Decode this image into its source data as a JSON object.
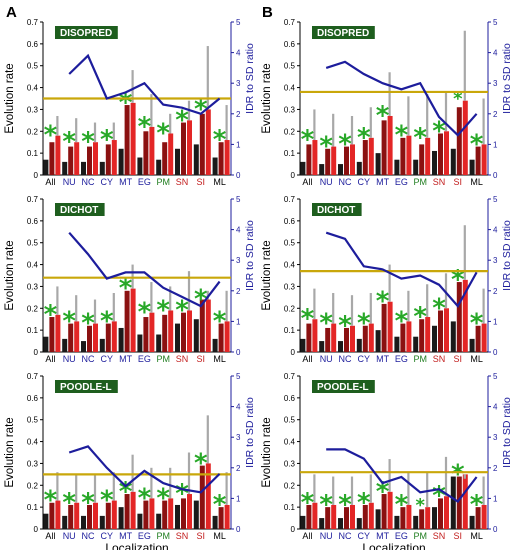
{
  "colors": {
    "bar_dark": "#1a1a1a",
    "bar_darkred": "#8b1111",
    "bar_red": "#e32626",
    "error": "#a8a8a8",
    "line": "#1d1d9c",
    "threshold": "#c9a70a",
    "star": "#28a828",
    "title_bg": "#1e5e1e",
    "cat_blue": "#1d1d9c",
    "cat_green": "#1f7d1f",
    "cat_red": "#c21d1d",
    "cat_black": "#000000"
  },
  "columns": [
    {
      "label": "A"
    },
    {
      "label": "B"
    }
  ],
  "chart_data": [
    {
      "type": "bar",
      "panel": "A",
      "title": "DISOPRED",
      "categories": [
        "All",
        "NU",
        "NC",
        "CY",
        "MT",
        "EG",
        "PM",
        "SN",
        "SI",
        "ML"
      ],
      "category_colors": [
        "black",
        "blue",
        "blue",
        "blue",
        "blue",
        "blue",
        "green",
        "red",
        "red",
        "black"
      ],
      "ylabel": "Evolution rate",
      "ylim": [
        0,
        0.7
      ],
      "yticks": [
        "0",
        "0.1",
        "0.2",
        "0.3",
        "0.4",
        "0.5",
        "0.6",
        "0.7"
      ],
      "y2label": "IDR to SD ratio",
      "y2lim": [
        0,
        5
      ],
      "y2ticks": [
        "0",
        "1",
        "2",
        "3",
        "4",
        "5"
      ],
      "xlabel": "",
      "series": [
        {
          "role": "black",
          "values": [
            0.07,
            0.06,
            0.06,
            0.06,
            0.12,
            0.08,
            0.07,
            0.12,
            0.14,
            0.08
          ]
        },
        {
          "role": "darkred",
          "values": [
            0.15,
            0.13,
            0.13,
            0.14,
            0.32,
            0.2,
            0.15,
            0.24,
            0.28,
            0.15
          ]
        },
        {
          "role": "red",
          "values": [
            0.18,
            0.15,
            0.15,
            0.16,
            0.33,
            0.22,
            0.19,
            0.25,
            0.3,
            0.16
          ]
        }
      ],
      "errors": [
        0.27,
        0.26,
        0.24,
        0.24,
        0.48,
        0.37,
        0.28,
        0.34,
        0.59,
        0.32
      ],
      "stars": [
        true,
        true,
        true,
        true,
        true,
        true,
        true,
        true,
        true,
        true
      ],
      "star_size": [
        "l",
        "l",
        "l",
        "l",
        "l",
        "l",
        "l",
        "l",
        "l",
        "l"
      ],
      "ratio": [
        null,
        3.3,
        3.9,
        2.5,
        2.7,
        3.0,
        2.3,
        2.2,
        2.0,
        2.5
      ],
      "threshold": 0.35
    },
    {
      "type": "bar",
      "panel": "B",
      "title": "DISOPRED",
      "categories": [
        "All",
        "NU",
        "NC",
        "CY",
        "MT",
        "EG",
        "PM",
        "SN",
        "SI",
        "ML"
      ],
      "category_colors": [
        "black",
        "blue",
        "blue",
        "blue",
        "blue",
        "blue",
        "green",
        "red",
        "red",
        "black"
      ],
      "ylabel": "Evolution rate",
      "ylim": [
        0,
        0.7
      ],
      "yticks": [
        "0",
        "0.1",
        "0.2",
        "0.3",
        "0.4",
        "0.5",
        "0.6",
        "0.7"
      ],
      "y2label": "IDR to SD ratio",
      "y2lim": [
        0,
        5
      ],
      "y2ticks": [
        "0",
        "1",
        "2",
        "3",
        "4",
        "5"
      ],
      "xlabel": "",
      "series": [
        {
          "role": "black",
          "values": [
            0.06,
            0.05,
            0.05,
            0.06,
            0.1,
            0.07,
            0.07,
            0.11,
            0.12,
            0.07
          ]
        },
        {
          "role": "darkred",
          "values": [
            0.14,
            0.12,
            0.13,
            0.16,
            0.25,
            0.17,
            0.14,
            0.19,
            0.31,
            0.13
          ]
        },
        {
          "role": "red",
          "values": [
            0.16,
            0.13,
            0.14,
            0.17,
            0.27,
            0.18,
            0.17,
            0.2,
            0.34,
            0.14
          ]
        }
      ],
      "errors": [
        0.3,
        0.28,
        0.27,
        0.31,
        0.47,
        0.36,
        0.37,
        0.38,
        0.66,
        0.35
      ],
      "stars": [
        true,
        true,
        true,
        true,
        true,
        true,
        true,
        true,
        true,
        true
      ],
      "star_size": [
        "l",
        "l",
        "l",
        "l",
        "l",
        "l",
        "l",
        "l",
        "s",
        "l"
      ],
      "ratio": [
        null,
        3.5,
        3.7,
        3.3,
        3.0,
        2.8,
        3.0,
        1.9,
        1.3,
        2.0
      ],
      "threshold": 0.38
    },
    {
      "type": "bar",
      "panel": "A",
      "title": "DICHOT",
      "categories": [
        "All",
        "NU",
        "NC",
        "CY",
        "MT",
        "EG",
        "PM",
        "SN",
        "SI",
        "ML"
      ],
      "category_colors": [
        "black",
        "blue",
        "blue",
        "blue",
        "blue",
        "blue",
        "green",
        "red",
        "red",
        "black"
      ],
      "ylabel": "Evolution rate",
      "ylim": [
        0,
        0.7
      ],
      "yticks": [
        "0",
        "0.1",
        "0.2",
        "0.3",
        "0.4",
        "0.5",
        "0.6",
        "0.7"
      ],
      "y2label": "IDR to SD ratio",
      "y2lim": [
        0,
        5
      ],
      "y2ticks": [
        "0",
        "1",
        "2",
        "3",
        "4",
        "5"
      ],
      "xlabel": "",
      "series": [
        {
          "role": "black",
          "values": [
            0.07,
            0.06,
            0.05,
            0.06,
            0.11,
            0.08,
            0.08,
            0.13,
            0.15,
            0.06
          ]
        },
        {
          "role": "darkred",
          "values": [
            0.16,
            0.13,
            0.12,
            0.13,
            0.28,
            0.16,
            0.17,
            0.18,
            0.24,
            0.13
          ]
        },
        {
          "role": "red",
          "values": [
            0.17,
            0.14,
            0.13,
            0.14,
            0.29,
            0.18,
            0.19,
            0.19,
            0.24,
            0.14
          ]
        }
      ],
      "errors": [
        0.3,
        0.26,
        0.24,
        0.27,
        0.4,
        0.32,
        0.3,
        0.37,
        0.28,
        0.28
      ],
      "stars": [
        true,
        true,
        true,
        true,
        true,
        true,
        true,
        true,
        true,
        true
      ],
      "star_size": [
        "l",
        "l",
        "l",
        "l",
        "l",
        "l",
        "l",
        "l",
        "l",
        "l"
      ],
      "ratio": [
        null,
        3.9,
        3.2,
        2.4,
        2.6,
        2.6,
        2.1,
        1.8,
        1.5,
        2.3
      ],
      "threshold": 0.34
    },
    {
      "type": "bar",
      "panel": "B",
      "title": "DICHOT",
      "categories": [
        "All",
        "NU",
        "NC",
        "CY",
        "MT",
        "EG",
        "PM",
        "SN",
        "SI",
        "ML"
      ],
      "category_colors": [
        "black",
        "blue",
        "blue",
        "blue",
        "blue",
        "blue",
        "green",
        "red",
        "red",
        "black"
      ],
      "ylabel": "Evolution rate",
      "ylim": [
        0,
        0.7
      ],
      "yticks": [
        "0",
        "0.1",
        "0.2",
        "0.3",
        "0.4",
        "0.5",
        "0.6",
        "0.7"
      ],
      "y2label": "IDR to SD ratio",
      "y2lim": [
        0,
        5
      ],
      "y2ticks": [
        "0",
        "1",
        "2",
        "3",
        "4",
        "5"
      ],
      "xlabel": "",
      "series": [
        {
          "role": "black",
          "values": [
            0.06,
            0.05,
            0.05,
            0.06,
            0.1,
            0.07,
            0.07,
            0.12,
            0.14,
            0.06
          ]
        },
        {
          "role": "darkred",
          "values": [
            0.13,
            0.11,
            0.11,
            0.12,
            0.22,
            0.13,
            0.15,
            0.19,
            0.32,
            0.12
          ]
        },
        {
          "role": "red",
          "values": [
            0.15,
            0.13,
            0.12,
            0.13,
            0.23,
            0.14,
            0.16,
            0.2,
            0.33,
            0.13
          ]
        }
      ],
      "errors": [
        0.29,
        0.27,
        0.26,
        0.27,
        0.4,
        0.28,
        0.31,
        0.36,
        0.58,
        0.29
      ],
      "stars": [
        true,
        true,
        true,
        true,
        true,
        true,
        true,
        true,
        true,
        true
      ],
      "star_size": [
        "l",
        "l",
        "l",
        "l",
        "l",
        "l",
        "l",
        "l",
        "l",
        "l"
      ],
      "ratio": [
        null,
        3.9,
        3.7,
        2.8,
        2.7,
        2.4,
        2.5,
        2.2,
        1.5,
        2.6
      ],
      "threshold": 0.37
    },
    {
      "type": "bar",
      "panel": "A",
      "title": "POODLE-L",
      "categories": [
        "All",
        "NU",
        "NC",
        "CY",
        "MT",
        "EG",
        "PM",
        "SN",
        "SI",
        "ML"
      ],
      "category_colors": [
        "black",
        "blue",
        "blue",
        "blue",
        "blue",
        "blue",
        "green",
        "red",
        "red",
        "black"
      ],
      "ylabel": "Evolution rate",
      "ylim": [
        0,
        0.7
      ],
      "yticks": [
        "0",
        "0.1",
        "0.2",
        "0.3",
        "0.4",
        "0.5",
        "0.6",
        "0.7"
      ],
      "y2label": "IDR to SD ratio",
      "y2lim": [
        0,
        5
      ],
      "y2ticks": [
        "0",
        "1",
        "2",
        "3",
        "4",
        "5"
      ],
      "xlabel": "Localization",
      "series": [
        {
          "role": "black",
          "values": [
            0.07,
            0.06,
            0.06,
            0.06,
            0.1,
            0.07,
            0.07,
            0.11,
            0.13,
            0.06
          ]
        },
        {
          "role": "darkred",
          "values": [
            0.12,
            0.11,
            0.11,
            0.12,
            0.16,
            0.13,
            0.13,
            0.14,
            0.29,
            0.1
          ]
        },
        {
          "role": "red",
          "values": [
            0.13,
            0.12,
            0.12,
            0.13,
            0.17,
            0.14,
            0.14,
            0.16,
            0.3,
            0.11
          ]
        }
      ],
      "errors": [
        0.26,
        0.25,
        0.25,
        0.26,
        0.34,
        0.28,
        0.28,
        0.35,
        0.52,
        0.26
      ],
      "stars": [
        true,
        true,
        true,
        true,
        true,
        true,
        true,
        true,
        true,
        true
      ],
      "star_size": [
        "l",
        "l",
        "l",
        "l",
        "l",
        "l",
        "l",
        "l",
        "l",
        "l"
      ],
      "ratio": [
        null,
        2.5,
        2.7,
        2.0,
        1.4,
        1.9,
        1.5,
        1.3,
        1.2,
        1.8
      ],
      "threshold": 0.25
    },
    {
      "type": "bar",
      "panel": "B",
      "title": "POODLE-L",
      "categories": [
        "All",
        "NU",
        "NC",
        "CY",
        "MT",
        "EG",
        "PM",
        "SN",
        "SI",
        "ML"
      ],
      "category_colors": [
        "black",
        "blue",
        "blue",
        "blue",
        "blue",
        "blue",
        "green",
        "red",
        "red",
        "black"
      ],
      "ylabel": "Evolution rate",
      "ylim": [
        0,
        0.7
      ],
      "yticks": [
        "0",
        "0.1",
        "0.2",
        "0.3",
        "0.4",
        "0.5",
        "0.6",
        "0.7"
      ],
      "y2label": "IDR to SD ratio",
      "y2lim": [
        0,
        5
      ],
      "y2ticks": [
        "0",
        "1",
        "2",
        "3",
        "4",
        "5"
      ],
      "xlabel": "Localization",
      "series": [
        {
          "role": "black",
          "values": [
            0.06,
            0.05,
            0.05,
            0.05,
            0.09,
            0.06,
            0.06,
            0.1,
            0.24,
            0.06
          ]
        },
        {
          "role": "darkred",
          "values": [
            0.11,
            0.1,
            0.1,
            0.11,
            0.16,
            0.1,
            0.09,
            0.14,
            0.24,
            0.1
          ]
        },
        {
          "role": "red",
          "values": [
            0.12,
            0.11,
            0.11,
            0.12,
            0.17,
            0.11,
            0.1,
            0.15,
            0.25,
            0.11
          ]
        }
      ],
      "errors": [
        0.25,
        0.24,
        0.24,
        0.25,
        0.32,
        0.26,
        0.26,
        0.33,
        0.23,
        0.24
      ],
      "stars": [
        true,
        true,
        true,
        true,
        true,
        true,
        true,
        true,
        true,
        true
      ],
      "star_size": [
        "l",
        "l",
        "l",
        "l",
        "l",
        "l",
        "s",
        "l",
        "l",
        "l"
      ],
      "ratio": [
        null,
        2.6,
        2.6,
        2.3,
        1.5,
        1.7,
        1.2,
        1.3,
        0.9,
        1.7
      ],
      "threshold": 0.26
    }
  ]
}
